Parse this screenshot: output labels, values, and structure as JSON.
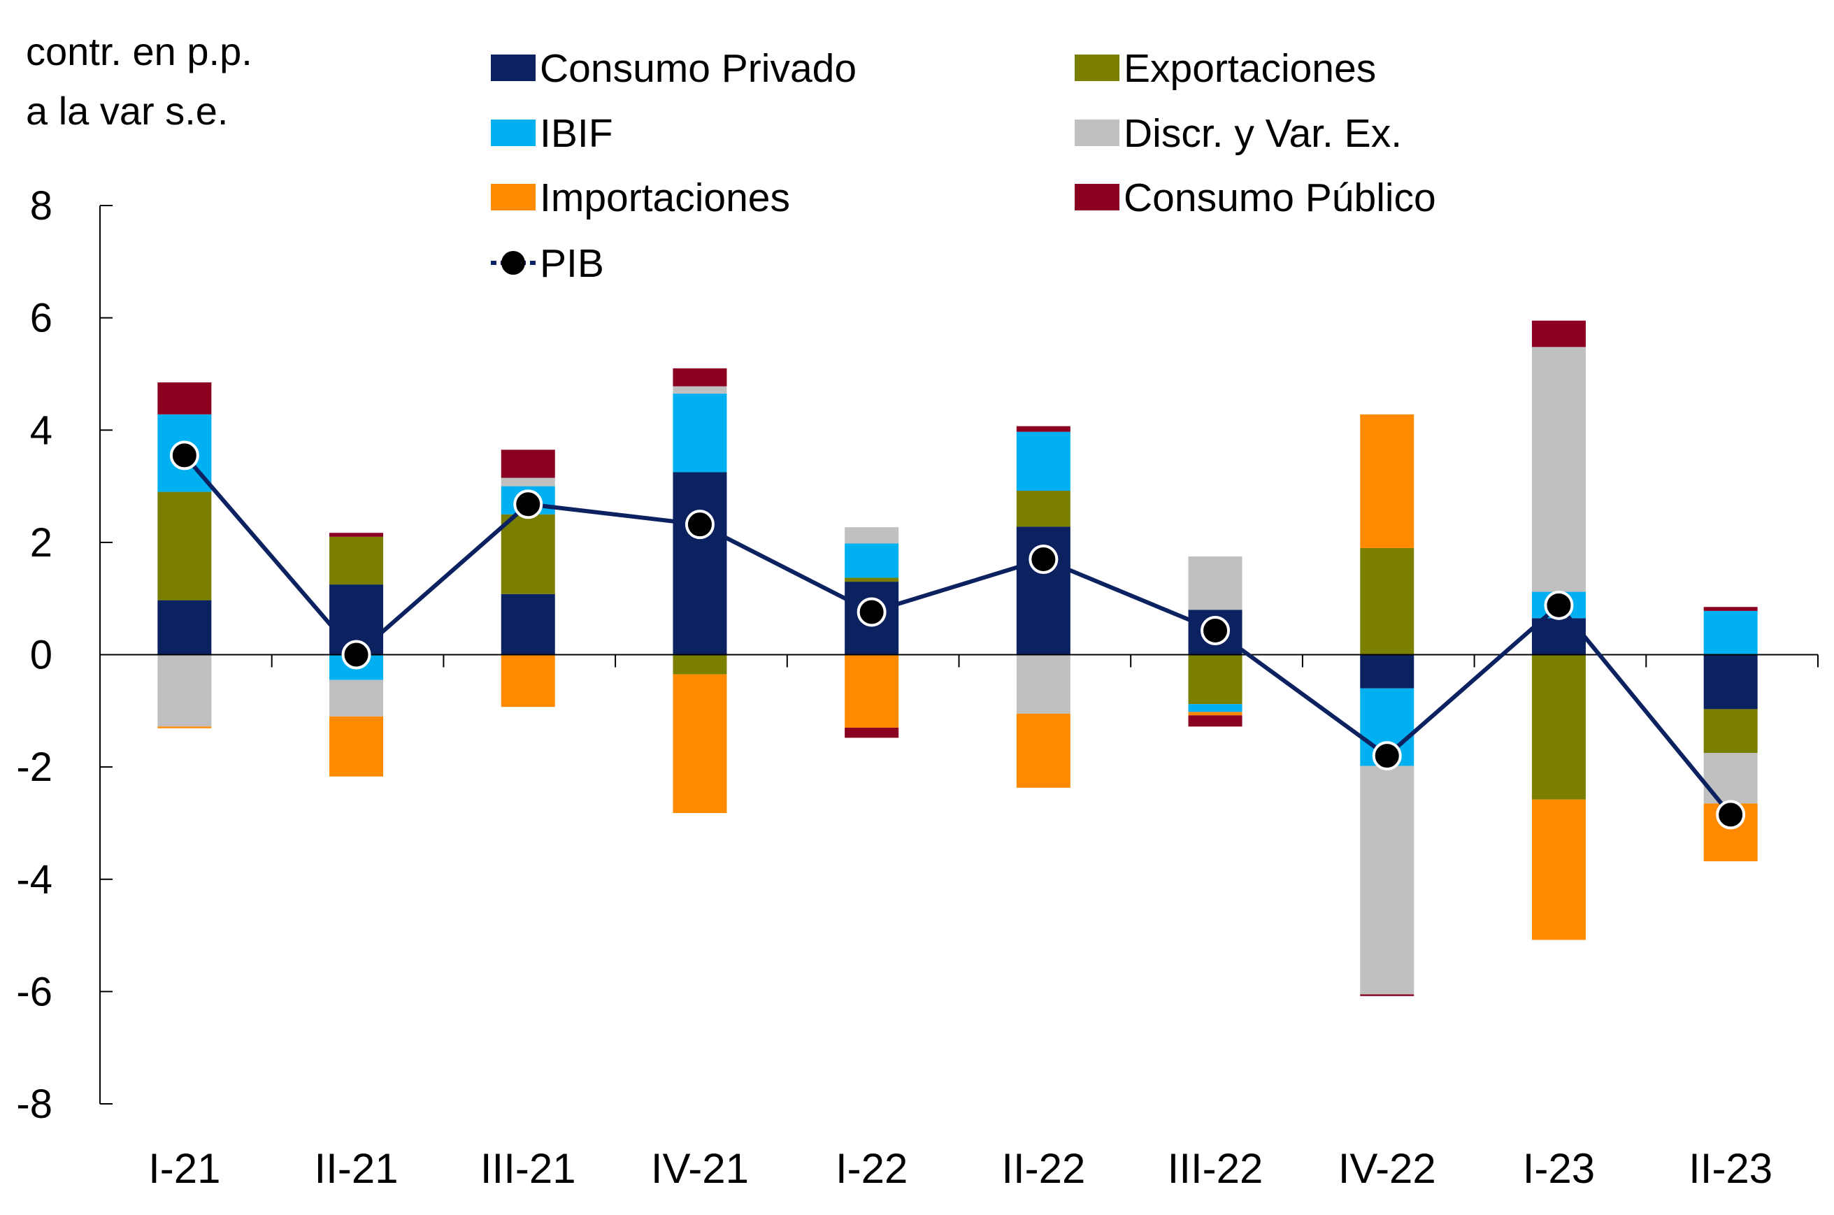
{
  "chart_data": {
    "type": "bar",
    "stacked": true,
    "ylabel_lines": [
      "contr. en p.p.",
      "a la var s.e."
    ],
    "ylim": [
      -8,
      8
    ],
    "yticks": [
      8,
      6,
      4,
      2,
      0,
      -2,
      -4,
      -6,
      -8
    ],
    "grid": false,
    "legend_position": "top",
    "categories": [
      "I-21",
      "II-21",
      "III-21",
      "IV-21",
      "I-22",
      "II-22",
      "III-22",
      "IV-22",
      "I-23",
      "II-23"
    ],
    "series": [
      {
        "name": "Consumo Privado",
        "color": "#0b2160",
        "values": [
          0.97,
          1.25,
          1.08,
          3.25,
          1.3,
          2.28,
          0.8,
          -0.6,
          0.65,
          -0.97
        ]
      },
      {
        "name": "Exportaciones",
        "color": "#7a7f00",
        "values": [
          1.93,
          0.85,
          1.42,
          -0.35,
          0.07,
          0.64,
          -0.88,
          1.9,
          -2.58,
          -0.78
        ]
      },
      {
        "name": "IBIF",
        "color": "#00b0f0",
        "values": [
          1.38,
          -0.45,
          0.5,
          1.4,
          0.61,
          1.05,
          -0.14,
          -1.38,
          0.47,
          0.78
        ]
      },
      {
        "name": "Discr. y Var. Ex.",
        "color": "#c0c0c0",
        "values": [
          -1.28,
          -0.65,
          0.15,
          0.13,
          0.29,
          -1.05,
          0.95,
          -4.07,
          4.36,
          -0.9
        ]
      },
      {
        "name": "Importaciones",
        "color": "#ff8a00",
        "values": [
          -0.03,
          -1.07,
          -0.93,
          -2.47,
          -1.3,
          -1.32,
          -0.06,
          2.38,
          -2.5,
          -1.03
        ]
      },
      {
        "name": "Consumo Público",
        "color": "#8b0020",
        "values": [
          0.57,
          0.07,
          0.5,
          0.32,
          -0.18,
          0.1,
          -0.2,
          -0.03,
          0.47,
          0.07
        ]
      }
    ],
    "line": {
      "name": "PIB",
      "color": "#0b2160",
      "marker_color": "#000000",
      "values": [
        3.55,
        0.0,
        2.68,
        2.32,
        0.76,
        1.7,
        0.43,
        -1.8,
        0.88,
        -2.85
      ]
    }
  }
}
